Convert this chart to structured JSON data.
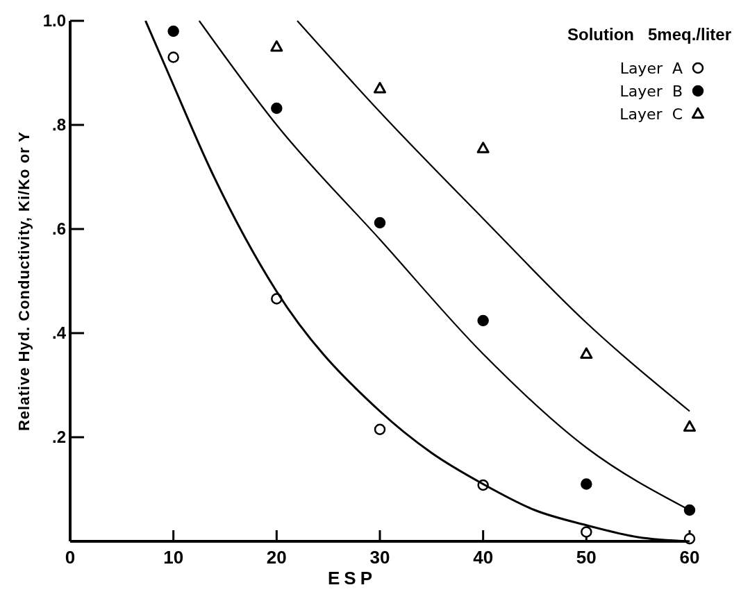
{
  "chart_data": {
    "type": "scatter",
    "xlabel": "ESP",
    "ylabel": "Relative Hyd. Conductivity, Ki/Ko or Y",
    "legend_title": "Solution   5meq./liter",
    "legend": "top right",
    "grid": false,
    "xlim": [
      0,
      60
    ],
    "ylim": [
      0,
      1.0
    ],
    "xticks": [
      0,
      10,
      20,
      30,
      40,
      50,
      60
    ],
    "yticks": [
      {
        "value": 0.2,
        "label": ".2"
      },
      {
        "value": 0.4,
        "label": ".4"
      },
      {
        "value": 0.6,
        "label": ".6"
      },
      {
        "value": 0.8,
        "label": ".8"
      },
      {
        "value": 1.0,
        "label": "1.0"
      }
    ],
    "series": [
      {
        "name": "Layer  A",
        "type": "scatter",
        "marker": "circle",
        "color": "#000000",
        "x": [
          10,
          20,
          30,
          40,
          50,
          60
        ],
        "values": [
          0.93,
          0.466,
          0.215,
          0.108,
          0.018,
          0.005
        ]
      },
      {
        "name": "Layer  B",
        "type": "scatter",
        "marker": "circle",
        "color": "#000000",
        "x": [
          10,
          20,
          30,
          40,
          50,
          60
        ],
        "values": [
          0.98,
          0.832,
          0.612,
          0.424,
          0.11,
          0.06
        ]
      },
      {
        "name": "Layer  C",
        "type": "scatter",
        "marker": "triangle",
        "color": "#000000",
        "x": [
          20,
          30,
          40,
          50,
          60
        ],
        "values": [
          0.95,
          0.87,
          0.755,
          0.36,
          0.22
        ]
      },
      {
        "type": "line",
        "marker": "none",
        "line_style": "solid",
        "color": "#000000",
        "x": [
          7.3,
          9.6,
          13.7,
          20,
          30,
          35,
          40,
          45,
          50,
          55,
          60
        ],
        "values": [
          1.0,
          0.895,
          0.71,
          0.48,
          0.25,
          0.17,
          0.11,
          0.06,
          0.031,
          0.008,
          0
        ]
      },
      {
        "type": "line",
        "marker": "none",
        "line_style": "solid",
        "color": "#000000",
        "x": [
          12.5,
          20,
          30,
          40,
          50,
          60
        ],
        "values": [
          1.0,
          0.8,
          0.58,
          0.36,
          0.18,
          0.06
        ]
      },
      {
        "type": "line",
        "marker": "none",
        "line_style": "solid",
        "color": "#000000",
        "x": [
          22,
          30,
          40,
          50,
          60
        ],
        "values": [
          1.0,
          0.825,
          0.62,
          0.42,
          0.25
        ]
      }
    ]
  }
}
